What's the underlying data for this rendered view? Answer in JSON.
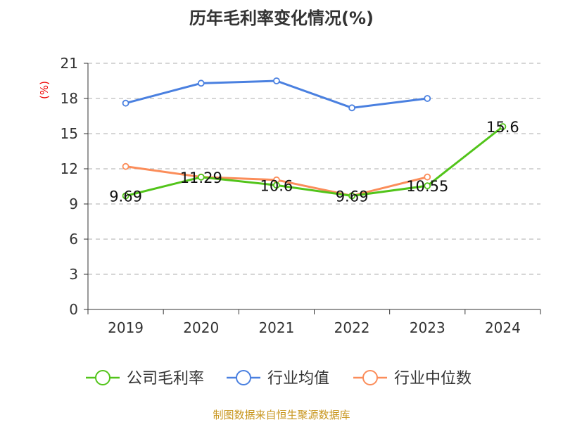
{
  "chart_data": {
    "type": "line",
    "title": "历年毛利率变化情况(%)",
    "ylabel": "(%)",
    "xlabel": "",
    "categories": [
      "2019",
      "2020",
      "2021",
      "2022",
      "2023",
      "2024"
    ],
    "ylim": [
      0,
      21
    ],
    "yticks": [
      0,
      3,
      6,
      9,
      12,
      15,
      18,
      21
    ],
    "grid": true,
    "legend_position": "bottom",
    "series": [
      {
        "name": "公司毛利率",
        "color": "#52c41a",
        "values": [
          9.69,
          11.29,
          10.6,
          9.69,
          10.55,
          15.6
        ],
        "labels": [
          "9.69",
          "11.29",
          "10.6",
          "9.69",
          "10.55",
          "15.6"
        ]
      },
      {
        "name": "行业均值",
        "color": "#4a80e0",
        "values": [
          17.6,
          19.3,
          19.5,
          17.2,
          18.0,
          null
        ]
      },
      {
        "name": "行业中位数",
        "color": "#fb8d5a",
        "values": [
          12.2,
          11.3,
          11.05,
          9.7,
          11.3,
          null
        ]
      }
    ]
  },
  "source": "制图数据来自恒生聚源数据库"
}
